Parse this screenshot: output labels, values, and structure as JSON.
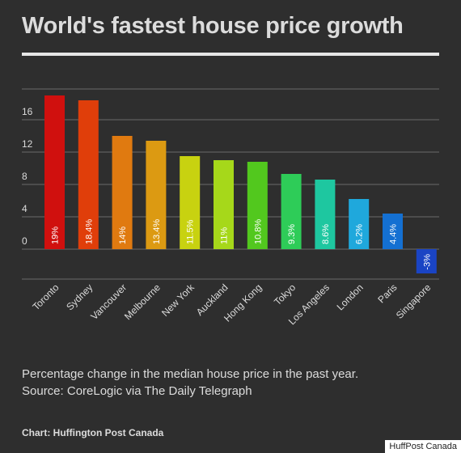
{
  "title": "World's fastest house price growth",
  "caption_line1": "Percentage change in the median house price in the past year.",
  "caption_line2": "Source: CoreLogic via The Daily Telegraph",
  "credit": "Chart: Huffington Post Canada",
  "watermark": "HuffPost Canada",
  "colors": {
    "background": "#2e2e2e",
    "gridline": "#6a6a6a",
    "text": "#dcdcdc"
  },
  "chart_data": {
    "type": "bar",
    "title": "World's fastest house price growth",
    "categories": [
      "Toronto",
      "Sydney",
      "Vancouver",
      "Melbourne",
      "New York",
      "Auckland",
      "Hong Kong",
      "Tokyo",
      "Los Angeles",
      "London",
      "Paris",
      "Singapore"
    ],
    "values": [
      19,
      18.4,
      14,
      13.4,
      11.5,
      11,
      10.8,
      9.3,
      8.6,
      6.2,
      4.4,
      -3
    ],
    "labels": [
      "19%",
      "18.4%",
      "14%",
      "13.4%",
      "11.5%",
      "11%",
      "10.8%",
      "9.3%",
      "8.6%",
      "6.2%",
      "4.4%",
      "-3%"
    ],
    "colors": [
      "#d0100e",
      "#e03e0a",
      "#e07a10",
      "#dc9a12",
      "#c8d210",
      "#a6d81a",
      "#52c81e",
      "#2ecc58",
      "#1ec7a0",
      "#1fa8dc",
      "#1470d2",
      "#1a44c4"
    ],
    "yticks": [
      0,
      4,
      8,
      12,
      16
    ],
    "ylim": [
      -3.5,
      20
    ],
    "grid": true,
    "xlabel": "",
    "ylabel": ""
  }
}
